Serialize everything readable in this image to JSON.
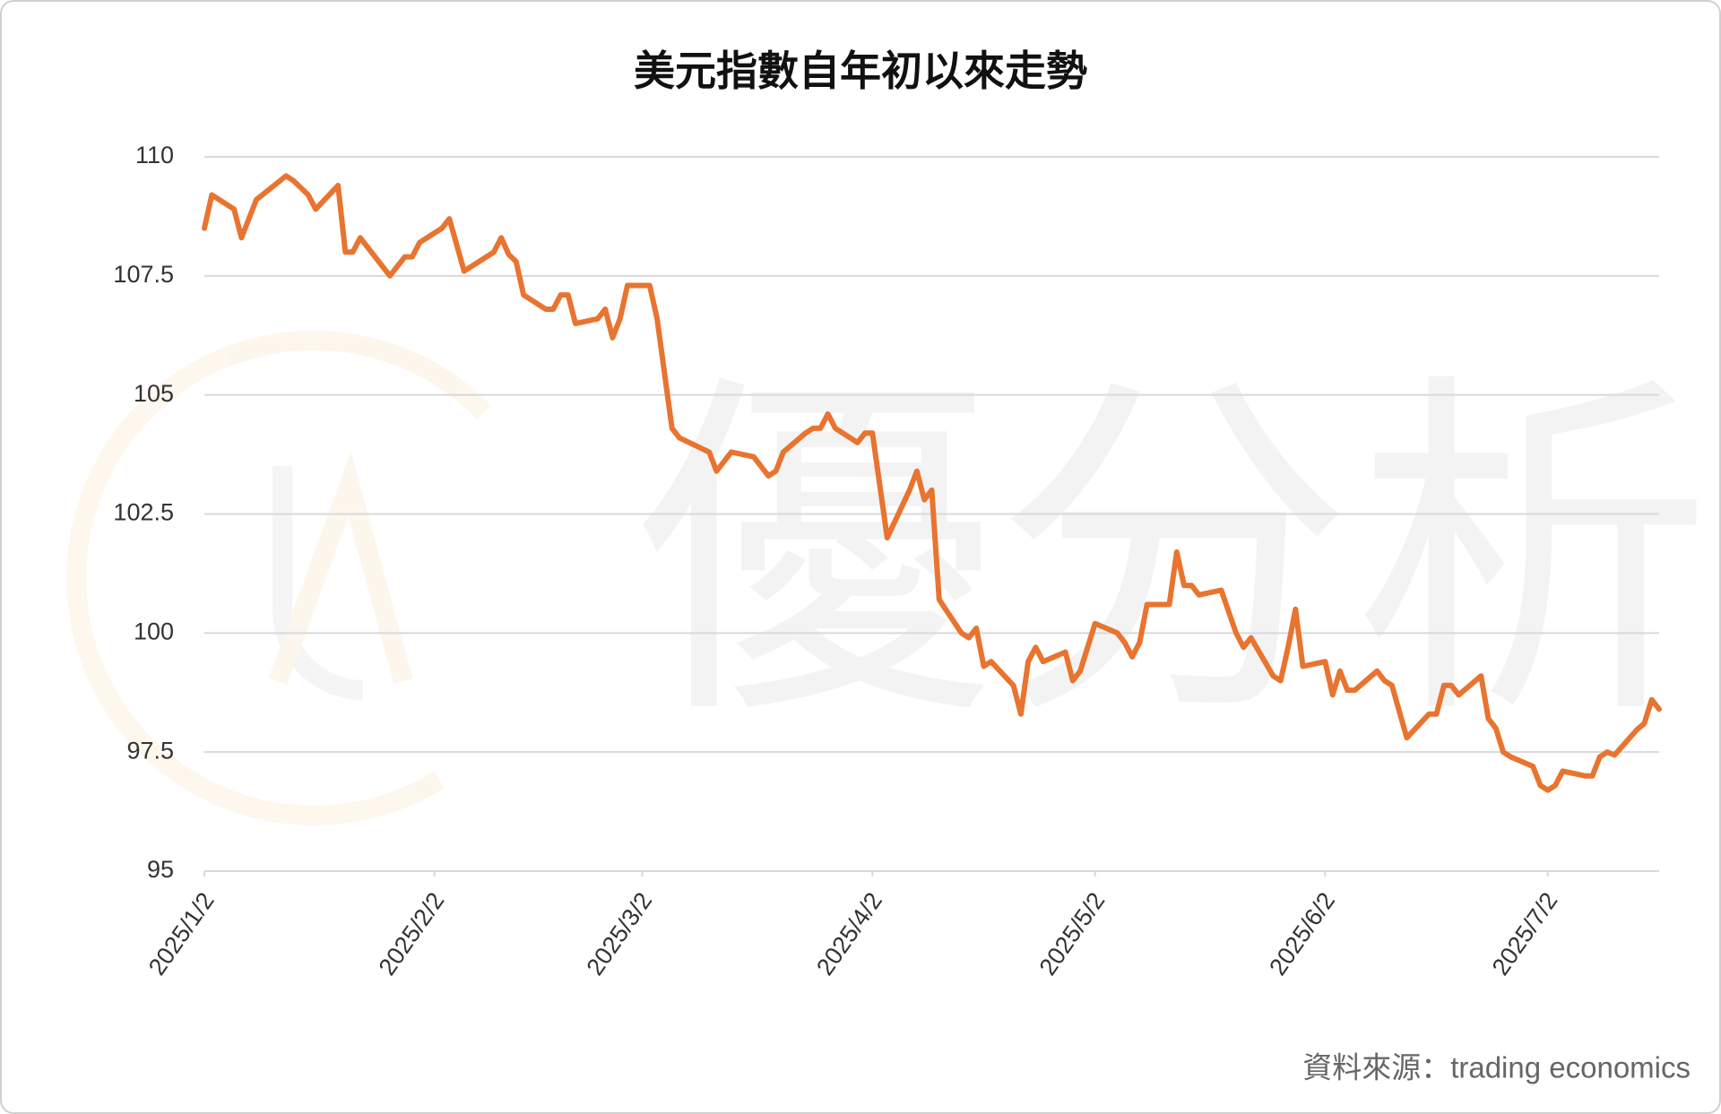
{
  "chart_data": {
    "type": "line",
    "title": "美元指數自年初以來走勢",
    "source": "資料來源：trading economics",
    "watermark": "優分析",
    "x": [
      "2025-01-02",
      "2025-01-03",
      "2025-01-06",
      "2025-01-07",
      "2025-01-09",
      "2025-01-13",
      "2025-01-14",
      "2025-01-16",
      "2025-01-17",
      "2025-01-20",
      "2025-01-21",
      "2025-01-22",
      "2025-01-23",
      "2025-01-24",
      "2025-01-27",
      "2025-01-29",
      "2025-01-30",
      "2025-01-31",
      "2025-02-03",
      "2025-02-04",
      "2025-02-06",
      "2025-02-07",
      "2025-02-10",
      "2025-02-11",
      "2025-02-12",
      "2025-02-13",
      "2025-02-14",
      "2025-02-17",
      "2025-02-18",
      "2025-02-19",
      "2025-02-20",
      "2025-02-21",
      "2025-02-24",
      "2025-02-25",
      "2025-02-26",
      "2025-02-27",
      "2025-02-28",
      "2025-03-03",
      "2025-03-04",
      "2025-03-06",
      "2025-03-07",
      "2025-03-11",
      "2025-03-12",
      "2025-03-14",
      "2025-03-17",
      "2025-03-19",
      "2025-03-20",
      "2025-03-21",
      "2025-03-24",
      "2025-03-25",
      "2025-03-26",
      "2025-03-27",
      "2025-03-28",
      "2025-03-31",
      "2025-04-01",
      "2025-04-02",
      "2025-04-04",
      "2025-04-07",
      "2025-04-08",
      "2025-04-09",
      "2025-04-10",
      "2025-04-11",
      "2025-04-14",
      "2025-04-15",
      "2025-04-16",
      "2025-04-17",
      "2025-04-18",
      "2025-04-21",
      "2025-04-22",
      "2025-04-23",
      "2025-04-24",
      "2025-04-25",
      "2025-04-28",
      "2025-04-29",
      "2025-04-30",
      "2025-05-02",
      "2025-05-05",
      "2025-05-06",
      "2025-05-07",
      "2025-05-08",
      "2025-05-09",
      "2025-05-12",
      "2025-05-13",
      "2025-05-14",
      "2025-05-15",
      "2025-05-16",
      "2025-05-19",
      "2025-05-21",
      "2025-05-22",
      "2025-05-23",
      "2025-05-26",
      "2025-05-27",
      "2025-05-28",
      "2025-05-29",
      "2025-05-30",
      "2025-06-02",
      "2025-06-03",
      "2025-06-04",
      "2025-06-05",
      "2025-06-06",
      "2025-06-09",
      "2025-06-10",
      "2025-06-11",
      "2025-06-13",
      "2025-06-16",
      "2025-06-17",
      "2025-06-18",
      "2025-06-19",
      "2025-06-20",
      "2025-06-23",
      "2025-06-24",
      "2025-06-25",
      "2025-06-26",
      "2025-06-27",
      "2025-06-30",
      "2025-07-01",
      "2025-07-02",
      "2025-07-03",
      "2025-07-04",
      "2025-07-07",
      "2025-07-08",
      "2025-07-09",
      "2025-07-10",
      "2025-07-11",
      "2025-07-14",
      "2025-07-15",
      "2025-07-16",
      "2025-07-17"
    ],
    "series": [
      {
        "name": "美元指數",
        "color": "#e8742f",
        "values": [
          108.5,
          109.2,
          108.9,
          108.3,
          109.1,
          109.6,
          109.5,
          109.2,
          108.9,
          109.4,
          108.0,
          108.0,
          108.3,
          108.1,
          107.5,
          107.9,
          107.9,
          108.2,
          108.5,
          108.7,
          107.6,
          107.7,
          108.0,
          108.3,
          107.95,
          107.8,
          107.1,
          106.8,
          106.8,
          107.1,
          107.1,
          106.5,
          106.6,
          106.8,
          106.2,
          106.6,
          107.3,
          107.3,
          106.6,
          104.3,
          104.1,
          103.8,
          103.4,
          103.8,
          103.7,
          103.3,
          103.4,
          103.8,
          104.2,
          104.3,
          104.3,
          104.6,
          104.3,
          104.0,
          104.2,
          104.2,
          102.0,
          103.0,
          103.4,
          102.8,
          103.0,
          100.7,
          100.0,
          99.9,
          100.1,
          99.3,
          99.4,
          98.9,
          98.3,
          99.4,
          99.7,
          99.4,
          99.6,
          99.0,
          99.2,
          100.2,
          100.0,
          99.8,
          99.5,
          99.8,
          100.6,
          100.6,
          101.7,
          101.0,
          101.0,
          100.8,
          100.9,
          100.0,
          99.7,
          99.9,
          99.1,
          99.0,
          99.7,
          100.5,
          99.3,
          99.4,
          98.7,
          99.2,
          98.8,
          98.8,
          99.2,
          99.0,
          98.9,
          97.8,
          98.3,
          98.3,
          98.9,
          98.9,
          98.7,
          99.1,
          98.2,
          98.0,
          97.5,
          97.4,
          97.2,
          96.8,
          96.7,
          96.8,
          97.1,
          97.0,
          97.0,
          97.4,
          97.5,
          97.44,
          97.97,
          98.1,
          98.6,
          98.4
        ]
      }
    ],
    "xlim": [
      "2025-01-02",
      "2025-07-17"
    ],
    "xticks": [
      {
        "value": "2025-01-02",
        "label": "2025/1/2"
      },
      {
        "value": "2025-02-02",
        "label": "2025/2/2"
      },
      {
        "value": "2025-03-02",
        "label": "2025/3/2"
      },
      {
        "value": "2025-04-02",
        "label": "2025/4/2"
      },
      {
        "value": "2025-05-02",
        "label": "2025/5/2"
      },
      {
        "value": "2025-06-02",
        "label": "2025/6/2"
      },
      {
        "value": "2025-07-02",
        "label": "2025/7/2"
      }
    ],
    "ylim": [
      95,
      110
    ],
    "yticks": [
      95,
      97.5,
      100,
      102.5,
      105,
      107.5,
      110
    ],
    "grid": true
  }
}
